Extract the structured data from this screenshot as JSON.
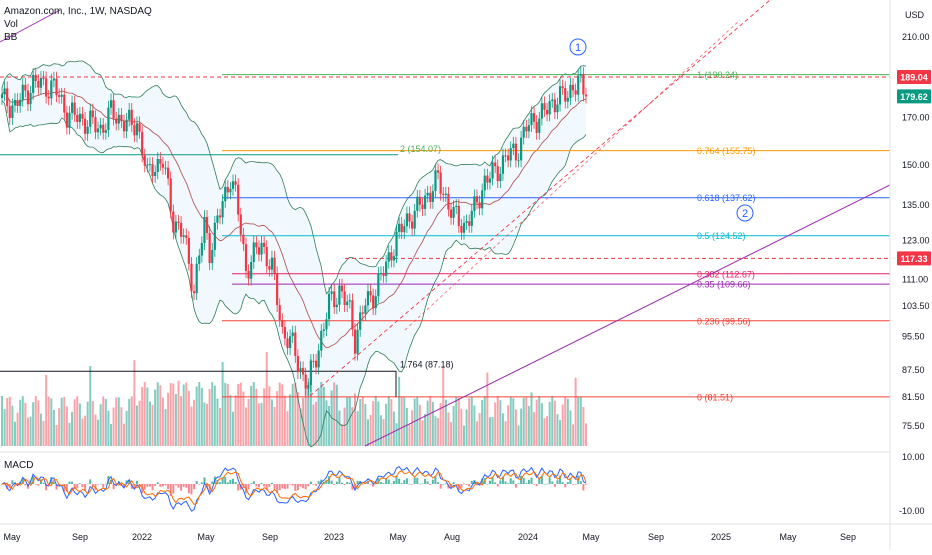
{
  "header": {
    "symbol": "Amazon.com, Inc., 1W, NASDAQ",
    "vol_label": "Vol",
    "bb_label": "BB"
  },
  "currency": "USD",
  "chart_data": {
    "type": "candlestick",
    "symbol": "Amazon.com, Inc., 1W, NASDAQ",
    "x_ticks": [
      "May",
      "Sep",
      "2022",
      "May",
      "Sep",
      "2023",
      "May",
      "Aug",
      "2024",
      "May",
      "Sep",
      "2025",
      "May",
      "Sep"
    ],
    "y_ticks": [
      210.0,
      189.04,
      179.62,
      170.0,
      150.0,
      135.0,
      123.0,
      117.33,
      111.0,
      103.5,
      95.5,
      87.5,
      81.5,
      75.5
    ],
    "y_range": [
      72,
      220
    ],
    "y_scale": "log",
    "price_tags": [
      {
        "value": "189.04",
        "color": "#f23645"
      },
      {
        "value": "179.62",
        "color": "#089981"
      },
      {
        "value": "117.33",
        "color": "#f23645"
      }
    ],
    "fib_levels": [
      {
        "label": "1 (190.24)",
        "value": 190.24,
        "color": "#4caf50"
      },
      {
        "label": "0.764 (155.75)",
        "value": 155.75,
        "color": "#ff9800"
      },
      {
        "label": "0.618 (137.62)",
        "value": 137.62,
        "color": "#2962ff"
      },
      {
        "label": "0.5 (124.52)",
        "value": 124.52,
        "color": "#00bcd4"
      },
      {
        "label": "0.382 (112.67)",
        "value": 112.67,
        "color": "#e91e63"
      },
      {
        "label": "0.35 (109.66)",
        "value": 109.66,
        "color": "#9c27b0"
      },
      {
        "label": "0.236 (99.56)",
        "value": 99.56,
        "color": "#f44336"
      },
      {
        "label": "0 (81.51)",
        "value": 81.51,
        "color": "#f44336"
      }
    ],
    "extension_labels": [
      {
        "label": "2 (154.07)",
        "value": 154.07
      },
      {
        "label": "1.764 (87.18)",
        "value": 87.18
      }
    ],
    "wave_labels": [
      "1",
      "2"
    ],
    "macd": {
      "label": "MACD",
      "y_ticks": [
        10.0,
        -10.0
      ]
    },
    "colors": {
      "up": "#089981",
      "down": "#f23645",
      "bb_band": "#2e7d5b",
      "ma": "#b45a5a",
      "macd_line": "#2962ff",
      "signal_line": "#ff6d00",
      "trend_line": "#9c27b0",
      "resistance": "#f23645"
    }
  }
}
